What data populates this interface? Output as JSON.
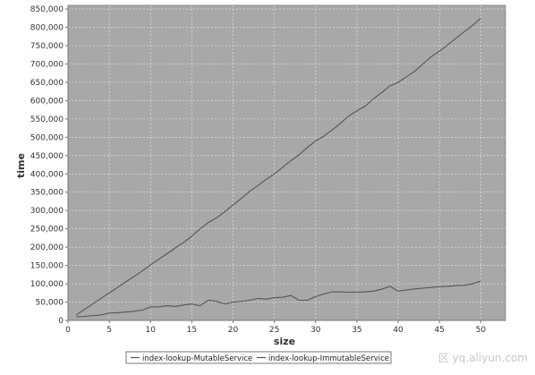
{
  "chart_data": {
    "type": "line",
    "xlabel": "size",
    "ylabel": "time",
    "xlim": [
      0,
      53
    ],
    "ylim": [
      0,
      860000
    ],
    "x_ticks": [
      0,
      5,
      10,
      15,
      20,
      25,
      30,
      35,
      40,
      45,
      50
    ],
    "x_tick_labels": [
      "0",
      "5",
      "10",
      "15",
      "20",
      "25",
      "30",
      "35",
      "40",
      "45",
      "50"
    ],
    "y_ticks": [
      0,
      50000,
      100000,
      150000,
      200000,
      250000,
      300000,
      350000,
      400000,
      450000,
      500000,
      550000,
      600000,
      650000,
      700000,
      750000,
      800000,
      850000
    ],
    "y_tick_labels": [
      "0",
      "50,000",
      "100,000",
      "150,000",
      "200,000",
      "250,000",
      "300,000",
      "350,000",
      "400,000",
      "450,000",
      "500,000",
      "550,000",
      "600,000",
      "650,000",
      "700,000",
      "750,000",
      "800,000",
      "850,000"
    ],
    "grid": true,
    "legend_position": "bottom",
    "plot_background": "#a8a8a8",
    "grid_color": "#e8e8e8",
    "line_color": "#555555",
    "series": [
      {
        "name": "index-lookup-MutableService",
        "x": [
          1,
          2,
          3,
          4,
          5,
          6,
          7,
          8,
          9,
          10,
          11,
          12,
          13,
          14,
          15,
          16,
          17,
          18,
          19,
          20,
          21,
          22,
          23,
          24,
          25,
          26,
          27,
          28,
          29,
          30,
          31,
          32,
          33,
          34,
          35,
          36,
          37,
          38,
          39,
          40,
          41,
          42,
          43,
          44,
          45,
          46,
          47,
          48,
          49,
          50
        ],
        "values": [
          15000,
          30000,
          45000,
          60000,
          75000,
          90000,
          105000,
          120000,
          135000,
          152000,
          167000,
          182000,
          198000,
          213000,
          230000,
          250000,
          267000,
          280000,
          297000,
          315000,
          333000,
          352000,
          368000,
          385000,
          400000,
          418000,
          436000,
          452000,
          472000,
          490000,
          503000,
          520000,
          538000,
          558000,
          572000,
          585000,
          605000,
          622000,
          640000,
          650000,
          665000,
          680000,
          700000,
          720000,
          735000,
          752000,
          770000,
          788000,
          805000,
          825000
        ]
      },
      {
        "name": "index-lookup-ImmutableService",
        "x": [
          1,
          2,
          3,
          4,
          5,
          6,
          7,
          8,
          9,
          10,
          11,
          12,
          13,
          14,
          15,
          16,
          17,
          18,
          19,
          20,
          21,
          22,
          23,
          24,
          25,
          26,
          27,
          28,
          29,
          30,
          31,
          32,
          33,
          34,
          35,
          36,
          37,
          38,
          39,
          40,
          41,
          42,
          43,
          44,
          45,
          46,
          47,
          48,
          49,
          50
        ],
        "values": [
          10000,
          11000,
          13000,
          15000,
          20000,
          21000,
          23000,
          25000,
          28000,
          37000,
          37000,
          40000,
          38000,
          42000,
          45000,
          40000,
          55000,
          52000,
          45000,
          50000,
          52000,
          55000,
          60000,
          58000,
          62000,
          63000,
          68000,
          55000,
          55000,
          65000,
          72000,
          78000,
          78000,
          77000,
          77000,
          78000,
          80000,
          85000,
          93000,
          80000,
          83000,
          86000,
          88000,
          90000,
          92000,
          93000,
          95000,
          96000,
          100000,
          107000
        ]
      }
    ]
  },
  "watermark": {
    "text": "区 yq.aliyun.com"
  }
}
